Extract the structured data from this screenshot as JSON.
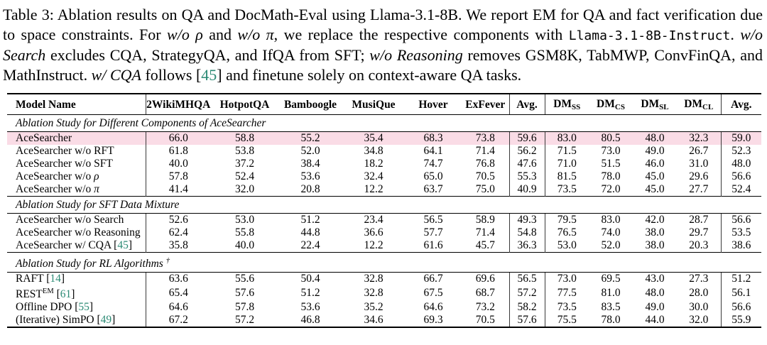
{
  "colors": {
    "citation": "#2b8a74",
    "highlight_row": "#fadce6"
  },
  "caption": {
    "parts": [
      {
        "t": "Table 3: Ablation results on QA and DocMath-Eval using Llama-3.1-8B. We report EM for QA and fact verification due to space constraints. For "
      },
      {
        "t": "w/o ",
        "s": "i"
      },
      {
        "t": "ρ",
        "s": "greek"
      },
      {
        "t": " and "
      },
      {
        "t": "w/o ",
        "s": "i"
      },
      {
        "t": "π",
        "s": "greek"
      },
      {
        "t": ", we replace the respective components with "
      },
      {
        "t": "Llama-3.1-8B-Instruct",
        "s": "mono"
      },
      {
        "t": ". "
      },
      {
        "t": "w/o Search",
        "s": "i"
      },
      {
        "t": " excludes CQA, StrategyQA, and IfQA from SFT; "
      },
      {
        "t": "w/o Reasoning",
        "s": "i"
      },
      {
        "t": " removes GSM8K, TabMWP, ConvFinQA, and MathInstruct. "
      },
      {
        "t": "w/ CQA",
        "s": "i"
      },
      {
        "t": " follows ["
      },
      {
        "t": "45",
        "s": "cite"
      },
      {
        "t": "] and finetune solely on context-aware QA tasks."
      }
    ]
  },
  "table": {
    "columns": [
      {
        "label": "Model Name"
      },
      {
        "label": "2WikiMHQA"
      },
      {
        "label": "HotpotQA"
      },
      {
        "label": "Bamboogle"
      },
      {
        "label": "MusiQue"
      },
      {
        "label": "Hover"
      },
      {
        "label": "ExFever"
      },
      {
        "label": "Avg."
      },
      {
        "label": "DM",
        "sub": "SS"
      },
      {
        "label": "DM",
        "sub": "CS"
      },
      {
        "label": "DM",
        "sub": "SL"
      },
      {
        "label": "DM",
        "sub": "CL"
      },
      {
        "label": "Avg."
      }
    ],
    "sections": [
      {
        "title_parts": [
          {
            "t": "Ablation Study for Different Components of AceSearcher"
          }
        ],
        "rows": [
          {
            "name_parts": [
              {
                "t": "AceSearcher"
              }
            ],
            "highlight": true,
            "values": [
              "66.0",
              "58.8",
              "55.2",
              "35.4",
              "68.3",
              "73.8",
              "59.6",
              "83.0",
              "80.5",
              "48.0",
              "32.3",
              "59.0"
            ]
          },
          {
            "name_parts": [
              {
                "t": "AceSearcher w/o RFT"
              }
            ],
            "values": [
              "61.8",
              "53.8",
              "52.0",
              "34.8",
              "64.1",
              "71.4",
              "56.2",
              "71.5",
              "73.0",
              "49.0",
              "26.7",
              "52.3"
            ]
          },
          {
            "name_parts": [
              {
                "t": "AceSearcher w/o SFT"
              }
            ],
            "values": [
              "40.0",
              "37.2",
              "38.4",
              "18.2",
              "74.7",
              "76.8",
              "47.6",
              "71.0",
              "51.5",
              "46.0",
              "31.0",
              "48.0"
            ]
          },
          {
            "name_parts": [
              {
                "t": "AceSearcher w/o "
              },
              {
                "t": "ρ",
                "s": "greek"
              }
            ],
            "values": [
              "57.8",
              "52.4",
              "53.6",
              "32.4",
              "65.0",
              "70.5",
              "55.3",
              "81.5",
              "78.0",
              "45.0",
              "29.6",
              "56.6"
            ]
          },
          {
            "name_parts": [
              {
                "t": "AceSearcher w/o "
              },
              {
                "t": "π",
                "s": "greek"
              }
            ],
            "values": [
              "41.4",
              "32.0",
              "20.8",
              "12.2",
              "63.7",
              "75.0",
              "40.9",
              "73.5",
              "72.0",
              "45.0",
              "27.7",
              "52.4"
            ]
          }
        ]
      },
      {
        "title_parts": [
          {
            "t": "Ablation Study for SFT Data Mixture"
          }
        ],
        "rows": [
          {
            "name_parts": [
              {
                "t": "AceSearcher w/o Search"
              }
            ],
            "values": [
              "52.6",
              "53.0",
              "51.2",
              "23.4",
              "56.5",
              "58.9",
              "49.3",
              "79.5",
              "83.0",
              "42.0",
              "28.7",
              "56.6"
            ]
          },
          {
            "name_parts": [
              {
                "t": "AceSearcher w/o Reasoning"
              }
            ],
            "values": [
              "62.4",
              "55.8",
              "44.8",
              "36.6",
              "57.7",
              "71.4",
              "54.8",
              "76.5",
              "74.0",
              "38.0",
              "29.7",
              "53.5"
            ]
          },
          {
            "name_parts": [
              {
                "t": "AceSearcher w/ CQA ["
              },
              {
                "t": "45",
                "s": "cite"
              },
              {
                "t": "]"
              }
            ],
            "values": [
              "35.8",
              "40.0",
              "22.4",
              "12.2",
              "61.6",
              "45.7",
              "36.3",
              "53.0",
              "52.0",
              "38.0",
              "20.3",
              "38.6"
            ]
          }
        ]
      },
      {
        "title_parts": [
          {
            "t": "Ablation Study for RL Algorithms "
          },
          {
            "t": "†",
            "s": "sup"
          }
        ],
        "rows": [
          {
            "name_parts": [
              {
                "t": "RAFT ["
              },
              {
                "t": "14",
                "s": "cite"
              },
              {
                "t": "]"
              }
            ],
            "values": [
              "63.6",
              "55.6",
              "50.4",
              "32.8",
              "66.7",
              "69.6",
              "56.5",
              "73.0",
              "69.5",
              "43.0",
              "27.3",
              "51.2"
            ]
          },
          {
            "name_parts": [
              {
                "t": "REST"
              },
              {
                "t": "EM",
                "s": "sup"
              },
              {
                "t": " ["
              },
              {
                "t": "61",
                "s": "cite"
              },
              {
                "t": "]"
              }
            ],
            "values": [
              "65.4",
              "57.6",
              "51.2",
              "32.8",
              "67.5",
              "68.7",
              "57.2",
              "77.5",
              "81.0",
              "48.0",
              "28.0",
              "56.1"
            ]
          },
          {
            "name_parts": [
              {
                "t": "Offline DPO ["
              },
              {
                "t": "55",
                "s": "cite"
              },
              {
                "t": "]"
              }
            ],
            "values": [
              "64.6",
              "57.8",
              "53.6",
              "35.2",
              "64.6",
              "73.2",
              "58.2",
              "73.5",
              "83.5",
              "49.0",
              "30.0",
              "56.6"
            ]
          },
          {
            "name_parts": [
              {
                "t": "(Iterative) SimPO ["
              },
              {
                "t": "49",
                "s": "cite"
              },
              {
                "t": "]"
              }
            ],
            "values": [
              "67.2",
              "57.2",
              "46.8",
              "34.6",
              "69.3",
              "70.5",
              "57.6",
              "75.5",
              "78.0",
              "44.0",
              "32.0",
              "55.9"
            ]
          }
        ]
      }
    ]
  }
}
